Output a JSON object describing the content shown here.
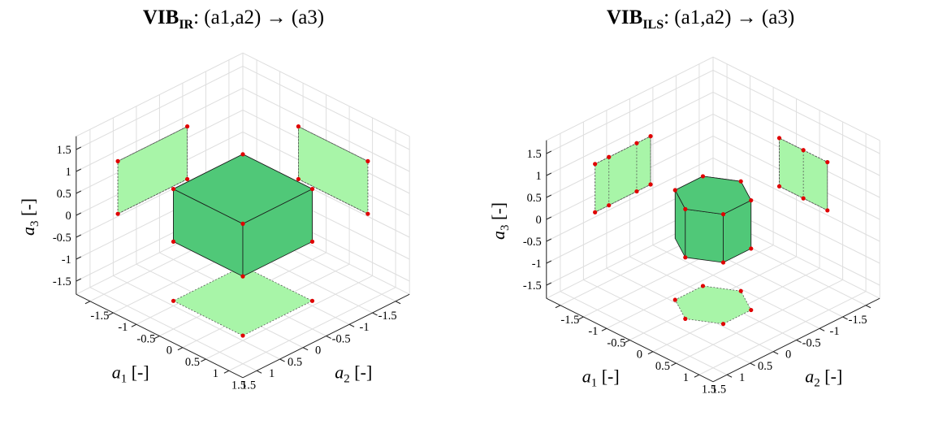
{
  "chart_data": [
    {
      "type": "3d-polytope-projection",
      "title": {
        "main": "VIB",
        "subscript": "IR",
        "mapping": ": (a1,a2) → (a3)"
      },
      "axes": {
        "x": {
          "label": "a1 [-]",
          "ticks": [
            "-1.5",
            "-1",
            "-0.5",
            "0",
            "0.5",
            "1",
            "1.5"
          ],
          "range": [
            -1.5,
            1.5
          ]
        },
        "y": {
          "label": "a2 [-]",
          "ticks": [
            "-1.5",
            "-1",
            "-0.5",
            "0",
            "0.5",
            "1",
            "1.5"
          ],
          "range": [
            -1.5,
            1.5
          ]
        },
        "z": {
          "label": "a3 [-]",
          "ticks": [
            "-1.5",
            "-1",
            "-0.5",
            "0",
            "0.5",
            "1",
            "1.5"
          ],
          "range": [
            -1.5,
            1.5
          ]
        }
      },
      "shape": "box",
      "vertices_a1a2": [
        [
          -0.75,
          -0.75
        ],
        [
          0.75,
          -0.75
        ],
        [
          0.75,
          0.75
        ],
        [
          -0.75,
          0.75
        ]
      ],
      "a3_range": [
        -0.6,
        0.6
      ],
      "colors": {
        "solid": "#50c878",
        "projection": "#a8f5a8",
        "vertex": "#e00000"
      }
    },
    {
      "type": "3d-polytope-projection",
      "title": {
        "main": "VIB",
        "subscript": "ILS",
        "mapping": ": (a1,a2) → (a3)"
      },
      "axes": {
        "x": {
          "label": "a1 [-]",
          "ticks": [
            "-1.5",
            "-1",
            "-0.5",
            "0",
            "0.5",
            "1",
            "1.5"
          ],
          "range": [
            -1.5,
            1.5
          ]
        },
        "y": {
          "label": "a2 [-]",
          "ticks": [
            "-1.5",
            "-1",
            "-0.5",
            "0",
            "0.5",
            "1",
            "1.5"
          ],
          "range": [
            -1.5,
            1.5
          ]
        },
        "z": {
          "label": "a3 [-]",
          "ticks": [
            "-1.5",
            "-1",
            "-0.5",
            "0",
            "0.5",
            "1",
            "1.5"
          ],
          "range": [
            -1.5,
            1.5
          ]
        }
      },
      "shape": "hexagonal-prism",
      "vertices_a1a2": [
        [
          0.6,
          0.0
        ],
        [
          0.3,
          0.52
        ],
        [
          -0.3,
          0.52
        ],
        [
          -0.6,
          0.0
        ],
        [
          -0.3,
          -0.52
        ],
        [
          0.3,
          -0.52
        ]
      ],
      "a3_range": [
        -0.55,
        0.55
      ],
      "colors": {
        "solid": "#50c878",
        "projection": "#a8f5a8",
        "vertex": "#e00000"
      }
    }
  ]
}
